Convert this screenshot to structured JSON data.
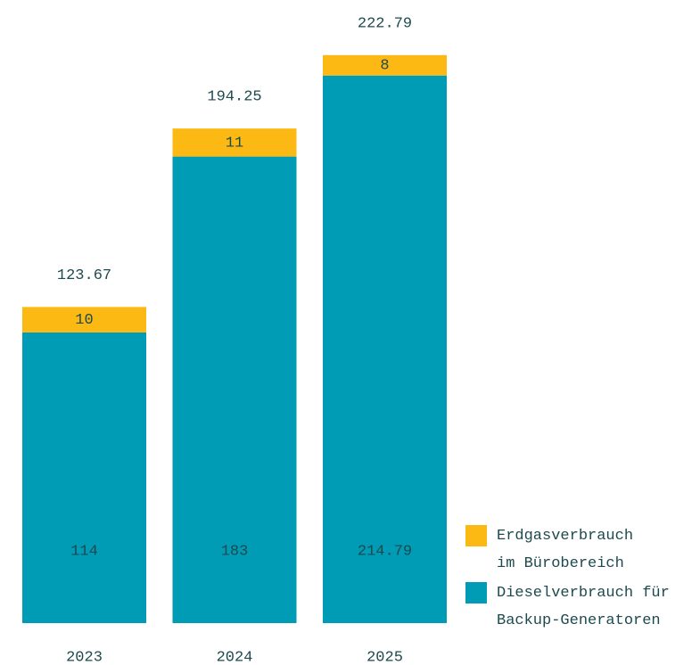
{
  "chart_data": {
    "type": "stacked-bar",
    "categories": [
      "2023",
      "2024",
      "2025"
    ],
    "series": [
      {
        "name": "Dieselverbrauch für Backup-Generatoren",
        "color": "#009bb4",
        "values": [
          114,
          183,
          214.79
        ]
      },
      {
        "name": "Erdgasverbrauch im Bürobereich",
        "color": "#fdb913",
        "values": [
          10,
          11,
          8
        ]
      }
    ],
    "totals": [
      123.67,
      194.25,
      222.79
    ],
    "legend": "bottom-right"
  }
}
